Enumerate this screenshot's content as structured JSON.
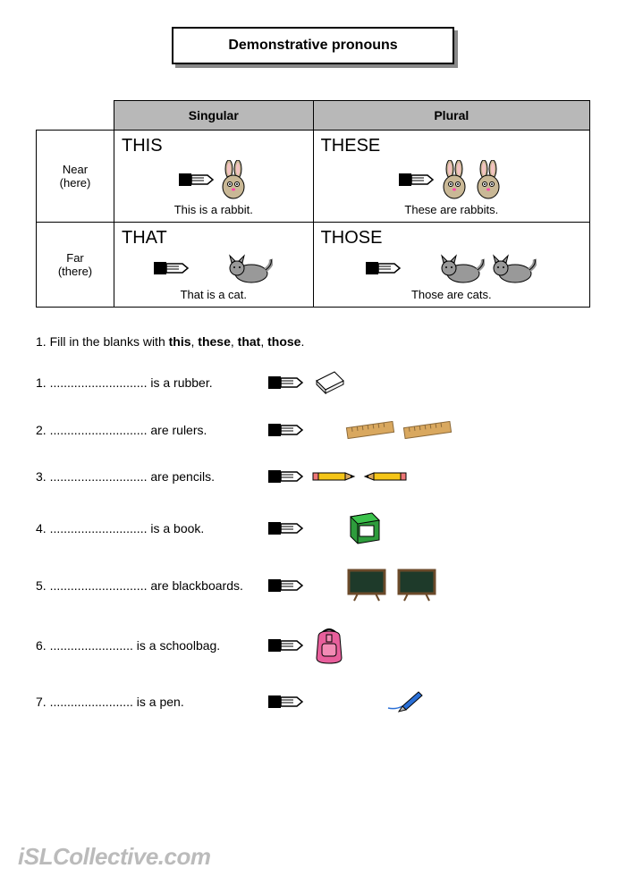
{
  "title": "Demonstrative pronouns",
  "table": {
    "col_headers": [
      "Singular",
      "Plural"
    ],
    "row_headers": [
      {
        "line1": "Near",
        "line2": "(here)"
      },
      {
        "line1": "Far",
        "line2": "(there)"
      }
    ],
    "cells": [
      [
        {
          "pronoun": "THIS",
          "caption": "This is a rabbit.",
          "icons": [
            "hand",
            "rabbit"
          ]
        },
        {
          "pronoun": "THESE",
          "caption": "These are rabbits.",
          "icons": [
            "hand",
            "rabbit",
            "rabbit"
          ]
        }
      ],
      [
        {
          "pronoun": "THAT",
          "caption": "That is a cat.",
          "icons": [
            "hand",
            "gap",
            "cat"
          ]
        },
        {
          "pronoun": "THOSE",
          "caption": "Those are cats.",
          "icons": [
            "hand",
            "gap",
            "cat",
            "cat"
          ]
        }
      ]
    ]
  },
  "instruction": {
    "prefix": "1. Fill in the blanks with ",
    "words": [
      "this",
      "these",
      "that",
      "those"
    ],
    "suffix": "."
  },
  "exercises": [
    {
      "n": "1.",
      "text": " ............................ is a rubber.",
      "icons": [
        "hand",
        "eraser"
      ]
    },
    {
      "n": "2.",
      "text": " ............................ are rulers.",
      "icons": [
        "hand",
        "gap",
        "ruler",
        "ruler"
      ]
    },
    {
      "n": "3.",
      "text": " ............................ are pencils.",
      "icons": [
        "hand",
        "pencil",
        "pencil2"
      ]
    },
    {
      "n": "4.",
      "text": " ............................ is a book.",
      "icons": [
        "hand",
        "gap",
        "book"
      ]
    },
    {
      "n": "5.",
      "text": " ............................ are blackboards.",
      "icons": [
        "hand",
        "gap",
        "board",
        "board"
      ]
    },
    {
      "n": "6.",
      "text": " ........................ is a schoolbag.",
      "icons": [
        "hand",
        "bag"
      ]
    },
    {
      "n": "7.",
      "text": " ........................ is a pen.",
      "icons": [
        "hand",
        "gap",
        "gap",
        "pen"
      ]
    }
  ],
  "watermark": "iSLCollective.com",
  "colors": {
    "header_bg": "#b8b8b8",
    "border": "#000000",
    "text": "#000000",
    "watermark": "#bbbbbb"
  }
}
